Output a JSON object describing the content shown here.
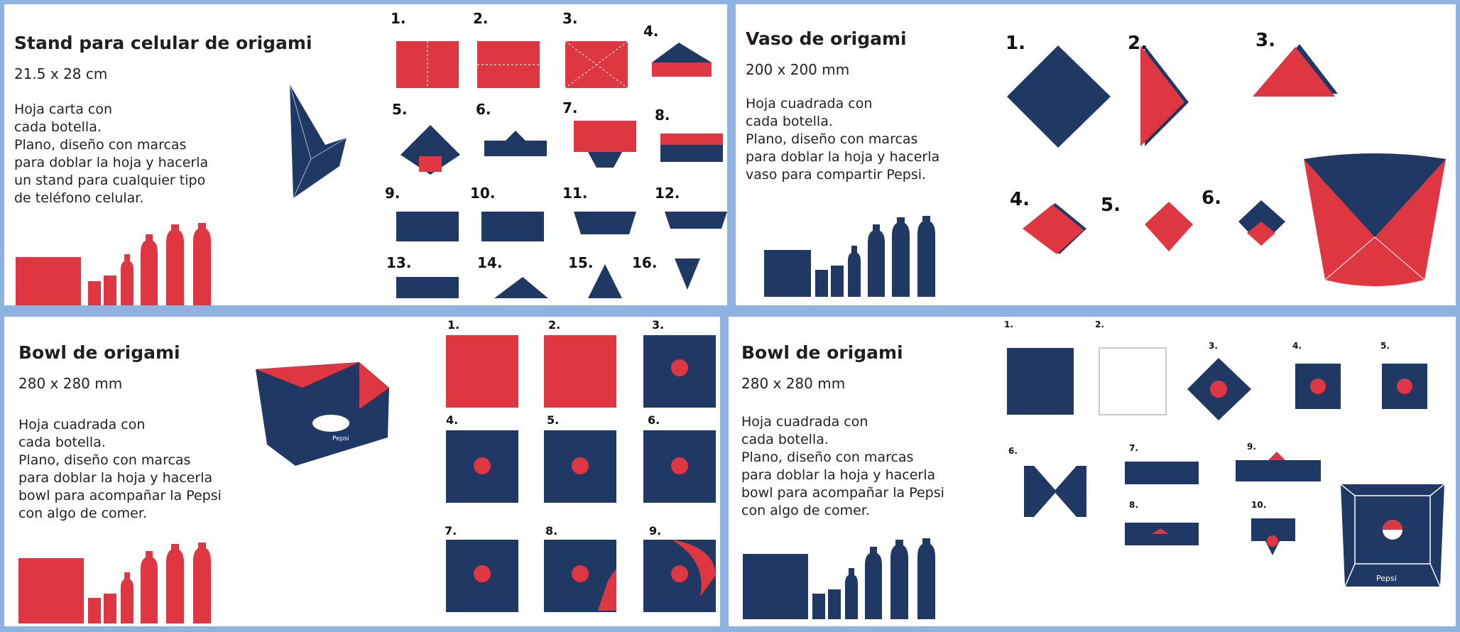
{
  "colors": {
    "red": "#df3742",
    "navy": "#1f3864",
    "frame": "#8fb3e0",
    "white": "#ffffff"
  },
  "panels": [
    {
      "title": "Stand para celular de origami",
      "size": "21.5 x 28 cm",
      "description": "Hoja carta con\ncada botella.\nPlano, diseño con marcas\npara doblar la hoja y hacerla\nun stand para cualquier tipo\nde teléfono celular.",
      "steps": [
        "1.",
        "2.",
        "3.",
        "4.",
        "5.",
        "6.",
        "7.",
        "8.",
        "9.",
        "10.",
        "11.",
        "12.",
        "13.",
        "14.",
        "15.",
        "16."
      ]
    },
    {
      "title": "Vaso de origami",
      "size": "200 x 200 mm",
      "description": "Hoja cuadrada con\ncada botella.\nPlano, diseño con marcas\npara doblar la hoja y hacerla\nvaso para compartir Pepsi.",
      "steps": [
        "1.",
        "2.",
        "3.",
        "4.",
        "5.",
        "6."
      ]
    },
    {
      "title": "Bowl de origami",
      "size": "280 x 280 mm",
      "description": "Hoja cuadrada con\ncada botella.\nPlano, diseño con marcas\npara doblar la hoja y hacerla\nbowl para acompañar la Pepsi\ncon algo de comer.",
      "steps": [
        "1.",
        "2.",
        "3.",
        "4.",
        "5.",
        "6.",
        "7.",
        "8.",
        "9."
      ],
      "brand": "Pepsi"
    },
    {
      "title": "Bowl de origami",
      "size": "280 x 280 mm",
      "description": "Hoja cuadrada con\ncada botella.\nPlano, diseño con marcas\npara doblar la hoja y hacerla\nbowl para acompañar la Pepsi\ncon algo de comer.",
      "steps": [
        "1.",
        "2.",
        "3.",
        "4.",
        "5.",
        "6.",
        "7.",
        "8.",
        "9.",
        "10."
      ],
      "brand": "Pepsi"
    }
  ]
}
